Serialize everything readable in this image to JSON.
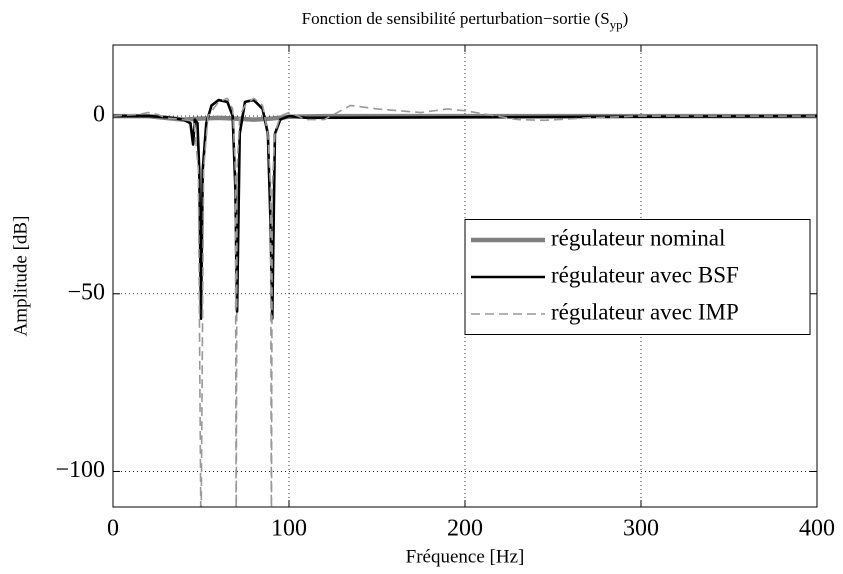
{
  "chart_data": {
    "type": "line",
    "title": [
      "Fonction de sensibilité perturbation−sortie (S",
      "yp",
      ")"
    ],
    "x_label": "Fréquence [Hz]",
    "y_label": "Amplitude [dB]",
    "xlim": [
      0,
      400
    ],
    "ylim": [
      -110,
      20
    ],
    "xticks": [
      0,
      100,
      200,
      300,
      400
    ],
    "yticks": [
      {
        "value": -100,
        "label": "−100"
      },
      {
        "value": -50,
        "label": "−50"
      },
      0
    ],
    "grid": true,
    "legend": "right",
    "series": [
      {
        "name": "régulateur nominal",
        "color": "#808080",
        "style": "solid",
        "x": [
          0,
          20,
          30,
          40,
          50,
          60,
          70,
          80,
          90,
          100,
          120,
          400
        ],
        "values": [
          0,
          0,
          -0.5,
          -1,
          -0.7,
          -0.5,
          -0.7,
          -1,
          -0.7,
          -0.2,
          0,
          0
        ]
      },
      {
        "name": "régulateur avec BSF",
        "color": "#000000",
        "style": "solid",
        "x": [
          0,
          20,
          30,
          40,
          44,
          45.5,
          46.5,
          48,
          49,
          50,
          51,
          53,
          56,
          60,
          65,
          68,
          69.5,
          70.5,
          72,
          75,
          80,
          85,
          88,
          89.5,
          90.5,
          92,
          95,
          100,
          110,
          400
        ],
        "values": [
          0,
          0,
          -0.3,
          -1,
          -2,
          -8,
          -1,
          -2,
          -15,
          -57,
          -15,
          -2,
          3,
          4.5,
          4,
          0,
          -20,
          -55,
          -5,
          4,
          4.5,
          2,
          -5,
          -30,
          -57,
          -5,
          -1,
          0,
          -0.5,
          0
        ]
      },
      {
        "name": "régulateur avec IMP",
        "color": "#999999",
        "style": "dashed",
        "x": [
          0,
          15,
          20,
          25,
          30,
          40,
          46,
          48.5,
          50,
          51.5,
          54,
          60,
          65,
          68,
          69.5,
          70,
          70.5,
          72,
          75,
          80,
          85,
          88,
          89.5,
          90,
          90.5,
          92,
          95,
          100,
          110,
          120,
          135,
          150,
          175,
          190,
          200,
          230,
          245,
          270,
          300,
          400
        ],
        "values": [
          0,
          0.5,
          1,
          0.5,
          -0.5,
          -1,
          -1.5,
          -15,
          -120,
          -15,
          0,
          4,
          5,
          2,
          -15,
          -120,
          -15,
          0,
          3,
          5,
          3,
          -5,
          -20,
          -120,
          -20,
          -5,
          0,
          1,
          -1,
          -1,
          3,
          2,
          1,
          2,
          1.5,
          -1,
          -1.2,
          -0.5,
          0,
          0
        ]
      }
    ]
  }
}
